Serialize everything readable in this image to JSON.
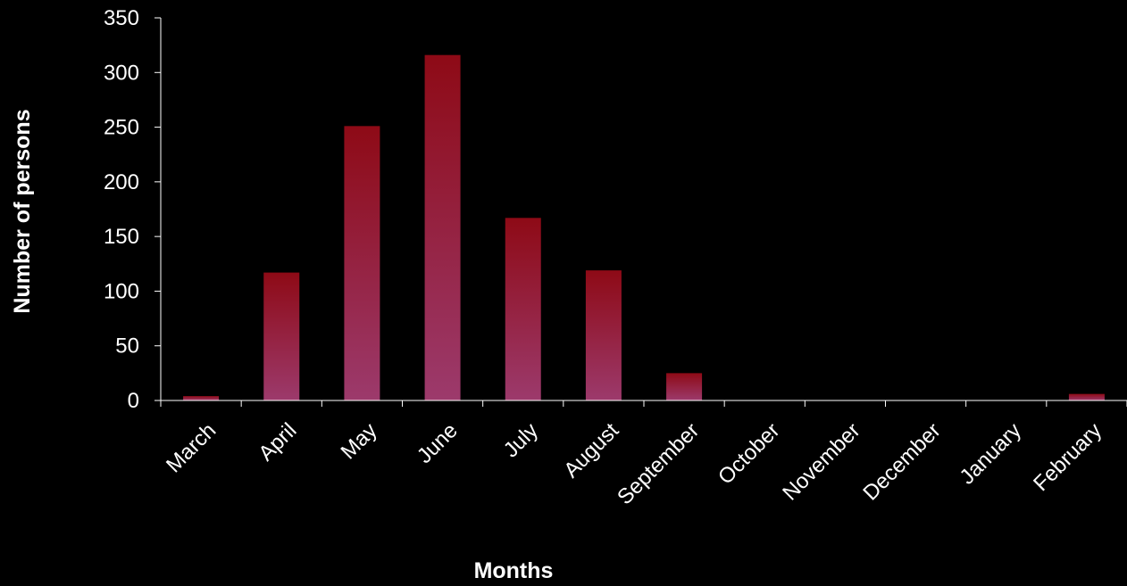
{
  "chart_data": {
    "type": "bar",
    "categories": [
      "March",
      "April",
      "May",
      "June",
      "July",
      "August",
      "September",
      "October",
      "November",
      "December",
      "January",
      "February"
    ],
    "values": [
      4,
      117,
      251,
      316,
      167,
      119,
      25,
      0,
      0,
      0,
      0,
      6
    ],
    "xlabel": "Months",
    "ylabel": "Number of persons",
    "ylim": [
      0,
      350
    ],
    "yticks": [
      0,
      50,
      100,
      150,
      200,
      250,
      300,
      350
    ],
    "grid": false,
    "legend": "none",
    "colors": {
      "background": "#000000",
      "axis": "#ffffff",
      "text": "#ffffff",
      "bar_top": "#8e0a16",
      "bar_bottom": "#9c3a6c"
    }
  }
}
